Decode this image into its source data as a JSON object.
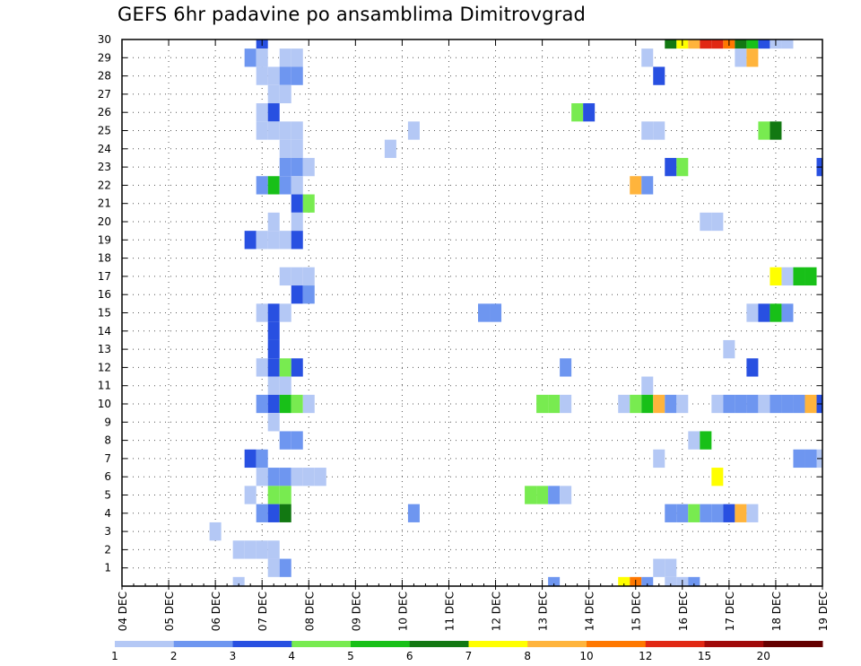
{
  "chart_data": {
    "type": "heatmap",
    "title": "GEFS 6hr padavine po ansamblima Dimitrovgrad",
    "x_tick_labels": [
      "04 DEC",
      "05 DEC",
      "06 DEC",
      "07 DEC",
      "08 DEC",
      "09 DEC",
      "10 DEC",
      "11 DEC",
      "12 DEC",
      "13 DEC",
      "14 DEC",
      "15 DEC",
      "16 DEC",
      "17 DEC",
      "18 DEC",
      "19 DEC"
    ],
    "y_tick_labels": [
      "1",
      "2",
      "3",
      "4",
      "5",
      "6",
      "7",
      "8",
      "9",
      "10",
      "11",
      "12",
      "13",
      "14",
      "15",
      "16",
      "17",
      "18",
      "19",
      "20",
      "21",
      "22",
      "23",
      "24",
      "25",
      "26",
      "27",
      "28",
      "29",
      "30"
    ],
    "x_axis": {
      "unit": "6-hour steps from 04 DEC 00Z",
      "range": [
        0,
        60
      ]
    },
    "y_axis": {
      "unit": "ensemble member",
      "range": [
        0,
        30
      ]
    },
    "grid": true,
    "colorbar": {
      "labels": [
        "1",
        "2",
        "3",
        "4",
        "5",
        "6",
        "7",
        "8",
        "10",
        "12",
        "15",
        "20"
      ],
      "colors": [
        "#b4c8f5",
        "#6e96f0",
        "#2850e1",
        "#78eb50",
        "#18c018",
        "#127812",
        "#ffff00",
        "#ffb43c",
        "#ff7800",
        "#e12814",
        "#a00a0a",
        "#640000"
      ]
    },
    "cells": [
      [
        12,
        30,
        2
      ],
      [
        47,
        30,
        5
      ],
      [
        48,
        30,
        6
      ],
      [
        49,
        30,
        7
      ],
      [
        50,
        30,
        9
      ],
      [
        51,
        30,
        9
      ],
      [
        52,
        30,
        8
      ],
      [
        53,
        30,
        5
      ],
      [
        54,
        30,
        4
      ],
      [
        55,
        30,
        2
      ],
      [
        56,
        30,
        0
      ],
      [
        57,
        30,
        0
      ],
      [
        11,
        29,
        1
      ],
      [
        12,
        29,
        0
      ],
      [
        14,
        29,
        0
      ],
      [
        15,
        29,
        0
      ],
      [
        45,
        29,
        0
      ],
      [
        53,
        29,
        0
      ],
      [
        54,
        29,
        7
      ],
      [
        12,
        28,
        0
      ],
      [
        13,
        28,
        0
      ],
      [
        14,
        28,
        1
      ],
      [
        15,
        28,
        1
      ],
      [
        46,
        28,
        2
      ],
      [
        13,
        27,
        0
      ],
      [
        14,
        27,
        0
      ],
      [
        12,
        26,
        0
      ],
      [
        13,
        26,
        2
      ],
      [
        39,
        26,
        3
      ],
      [
        40,
        26,
        2
      ],
      [
        12,
        25,
        0
      ],
      [
        13,
        25,
        0
      ],
      [
        14,
        25,
        0
      ],
      [
        15,
        25,
        0
      ],
      [
        25,
        25,
        0
      ],
      [
        45,
        25,
        0
      ],
      [
        46,
        25,
        0
      ],
      [
        55,
        25,
        3
      ],
      [
        56,
        25,
        5
      ],
      [
        14,
        24,
        0
      ],
      [
        15,
        24,
        0
      ],
      [
        23,
        24,
        0
      ],
      [
        14,
        23,
        1
      ],
      [
        15,
        23,
        1
      ],
      [
        16,
        23,
        0
      ],
      [
        47,
        23,
        2
      ],
      [
        48,
        23,
        3
      ],
      [
        60,
        23,
        2
      ],
      [
        12,
        22,
        1
      ],
      [
        13,
        22,
        4
      ],
      [
        14,
        22,
        1
      ],
      [
        15,
        22,
        0
      ],
      [
        44,
        22,
        7
      ],
      [
        45,
        22,
        1
      ],
      [
        15,
        21,
        2
      ],
      [
        16,
        21,
        3
      ],
      [
        13,
        20,
        0
      ],
      [
        15,
        20,
        0
      ],
      [
        50,
        20,
        0
      ],
      [
        51,
        20,
        0
      ],
      [
        11,
        19,
        2
      ],
      [
        12,
        19,
        0
      ],
      [
        13,
        19,
        0
      ],
      [
        14,
        19,
        0
      ],
      [
        15,
        19,
        2
      ],
      [
        14,
        17,
        0
      ],
      [
        15,
        17,
        0
      ],
      [
        16,
        17,
        0
      ],
      [
        56,
        17,
        6
      ],
      [
        57,
        17,
        0
      ],
      [
        58,
        17,
        4
      ],
      [
        59,
        17,
        4
      ],
      [
        15,
        16,
        2
      ],
      [
        16,
        16,
        1
      ],
      [
        12,
        15,
        0
      ],
      [
        13,
        15,
        2
      ],
      [
        14,
        15,
        0
      ],
      [
        31,
        15,
        1
      ],
      [
        32,
        15,
        1
      ],
      [
        54,
        15,
        0
      ],
      [
        55,
        15,
        2
      ],
      [
        56,
        15,
        4
      ],
      [
        57,
        15,
        1
      ],
      [
        13,
        14,
        2
      ],
      [
        13,
        13,
        2
      ],
      [
        52,
        13,
        0
      ],
      [
        12,
        12,
        0
      ],
      [
        13,
        12,
        2
      ],
      [
        14,
        12,
        3
      ],
      [
        15,
        12,
        2
      ],
      [
        38,
        12,
        1
      ],
      [
        54,
        12,
        2
      ],
      [
        13,
        11,
        0
      ],
      [
        14,
        11,
        0
      ],
      [
        45,
        11,
        0
      ],
      [
        12,
        10,
        1
      ],
      [
        13,
        10,
        2
      ],
      [
        14,
        10,
        4
      ],
      [
        15,
        10,
        3
      ],
      [
        16,
        10,
        0
      ],
      [
        36,
        10,
        3
      ],
      [
        37,
        10,
        3
      ],
      [
        38,
        10,
        0
      ],
      [
        43,
        10,
        0
      ],
      [
        44,
        10,
        3
      ],
      [
        45,
        10,
        4
      ],
      [
        46,
        10,
        7
      ],
      [
        47,
        10,
        1
      ],
      [
        48,
        10,
        0
      ],
      [
        51,
        10,
        0
      ],
      [
        52,
        10,
        1
      ],
      [
        53,
        10,
        1
      ],
      [
        54,
        10,
        1
      ],
      [
        55,
        10,
        0
      ],
      [
        56,
        10,
        1
      ],
      [
        57,
        10,
        1
      ],
      [
        58,
        10,
        1
      ],
      [
        59,
        10,
        7
      ],
      [
        60,
        10,
        2
      ],
      [
        13,
        9,
        0
      ],
      [
        14,
        8,
        1
      ],
      [
        15,
        8,
        1
      ],
      [
        49,
        8,
        0
      ],
      [
        50,
        8,
        4
      ],
      [
        11,
        7,
        2
      ],
      [
        12,
        7,
        1
      ],
      [
        46,
        7,
        0
      ],
      [
        58,
        7,
        1
      ],
      [
        59,
        7,
        1
      ],
      [
        60,
        7,
        0
      ],
      [
        12,
        6,
        0
      ],
      [
        13,
        6,
        1
      ],
      [
        14,
        6,
        1
      ],
      [
        15,
        6,
        0
      ],
      [
        16,
        6,
        0
      ],
      [
        17,
        6,
        0
      ],
      [
        51,
        6,
        6
      ],
      [
        11,
        5,
        0
      ],
      [
        13,
        5,
        3
      ],
      [
        14,
        5,
        3
      ],
      [
        35,
        5,
        3
      ],
      [
        36,
        5,
        3
      ],
      [
        37,
        5,
        1
      ],
      [
        38,
        5,
        0
      ],
      [
        12,
        4,
        1
      ],
      [
        13,
        4,
        2
      ],
      [
        14,
        4,
        5
      ],
      [
        25,
        4,
        1
      ],
      [
        47,
        4,
        1
      ],
      [
        48,
        4,
        1
      ],
      [
        49,
        4,
        3
      ],
      [
        50,
        4,
        1
      ],
      [
        51,
        4,
        1
      ],
      [
        52,
        4,
        2
      ],
      [
        53,
        4,
        7
      ],
      [
        54,
        4,
        0
      ],
      [
        8,
        3,
        0
      ],
      [
        10,
        2,
        0
      ],
      [
        11,
        2,
        0
      ],
      [
        12,
        2,
        0
      ],
      [
        13,
        2,
        0
      ],
      [
        13,
        1,
        0
      ],
      [
        14,
        1,
        1
      ],
      [
        46,
        1,
        0
      ],
      [
        47,
        1,
        0
      ],
      [
        10,
        0,
        0
      ],
      [
        37,
        0,
        1
      ],
      [
        43,
        0,
        6
      ],
      [
        44,
        0,
        8
      ],
      [
        45,
        0,
        1
      ],
      [
        47,
        0,
        0
      ],
      [
        48,
        0,
        0
      ],
      [
        49,
        0,
        1
      ]
    ]
  }
}
